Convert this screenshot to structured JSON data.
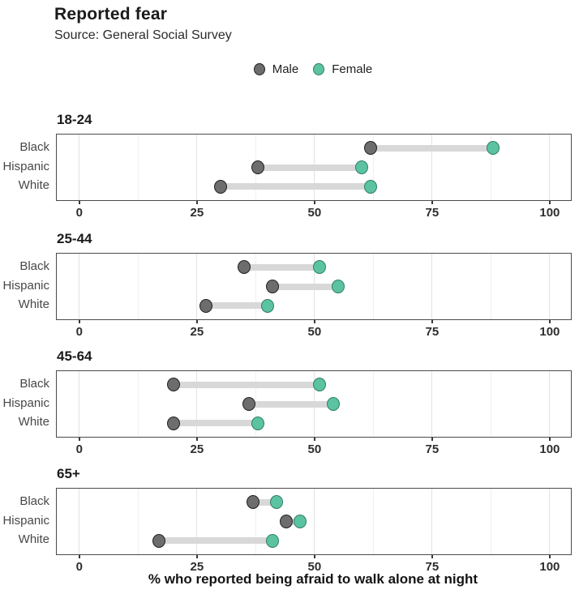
{
  "chart_data": {
    "type": "dumbbell",
    "title": "Reported fear",
    "subtitle": "Source: General Social Survey",
    "xlabel": "% who reported being afraid to walk alone at night",
    "x_ticks": [
      0,
      25,
      50,
      75,
      100
    ],
    "x_minor_ticks": [
      12.5,
      37.5,
      62.5,
      87.5
    ],
    "xlim": [
      -4.8,
      104.5
    ],
    "grid": true,
    "legend_position": "top-center",
    "legend": [
      {
        "label": "Male",
        "color": "#6d6d6d"
      },
      {
        "label": "Female",
        "color": "#5bc3a2"
      }
    ],
    "colors": {
      "male_fill": "#6d6d6d",
      "male_stroke": "#1f1f1f",
      "female_fill": "#5bc3a2",
      "female_stroke": "#2e7d64",
      "connector": "#d8d8d8"
    },
    "categories": [
      "Black",
      "Hispanic",
      "White"
    ],
    "facets": [
      {
        "label": "18-24",
        "rows": [
          {
            "category": "Black",
            "male": 62,
            "female": 88
          },
          {
            "category": "Hispanic",
            "male": 38,
            "female": 60
          },
          {
            "category": "White",
            "male": 30,
            "female": 62
          }
        ]
      },
      {
        "label": "25-44",
        "rows": [
          {
            "category": "Black",
            "male": 35,
            "female": 51
          },
          {
            "category": "Hispanic",
            "male": 41,
            "female": 55
          },
          {
            "category": "White",
            "male": 27,
            "female": 40
          }
        ]
      },
      {
        "label": "45-64",
        "rows": [
          {
            "category": "Black",
            "male": 20,
            "female": 51
          },
          {
            "category": "Hispanic",
            "male": 36,
            "female": 54
          },
          {
            "category": "White",
            "male": 20,
            "female": 38
          }
        ]
      },
      {
        "label": "65+",
        "rows": [
          {
            "category": "Black",
            "male": 37,
            "female": 42
          },
          {
            "category": "Hispanic",
            "male": 44,
            "female": 47
          },
          {
            "category": "White",
            "male": 17,
            "female": 41
          }
        ]
      }
    ]
  }
}
